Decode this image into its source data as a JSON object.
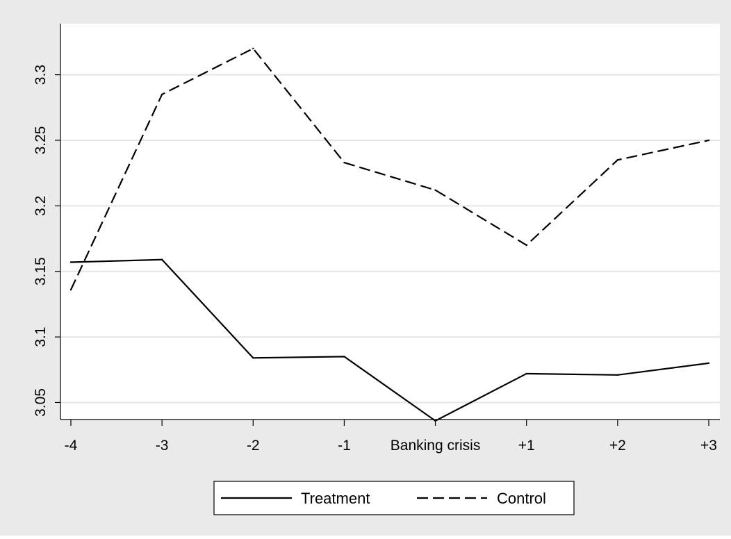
{
  "chart_data": {
    "type": "line",
    "title": "",
    "xlabel": "",
    "ylabel": "",
    "categories": [
      "-4",
      "-3",
      "-2",
      "-1",
      "Banking crisis",
      "+1",
      "+2",
      "+3"
    ],
    "yticks": [
      "3.05",
      "3.1",
      "3.15",
      "3.2",
      "3.25",
      "3.3"
    ],
    "ylim": [
      3.037,
      3.339
    ],
    "grid": true,
    "legend_position": "bottom",
    "series": [
      {
        "name": "Treatment",
        "style": "solid",
        "values": [
          3.157,
          3.159,
          3.084,
          3.085,
          3.036,
          3.072,
          3.071,
          3.08
        ]
      },
      {
        "name": "Control",
        "style": "dashed",
        "values": [
          3.136,
          3.285,
          3.32,
          3.233,
          3.212,
          3.17,
          3.235,
          3.25
        ]
      }
    ],
    "colors": {
      "background": "#eaeaea",
      "plot_background": "#ffffff",
      "line": "#000000",
      "grid": "#e5e5e5"
    }
  }
}
